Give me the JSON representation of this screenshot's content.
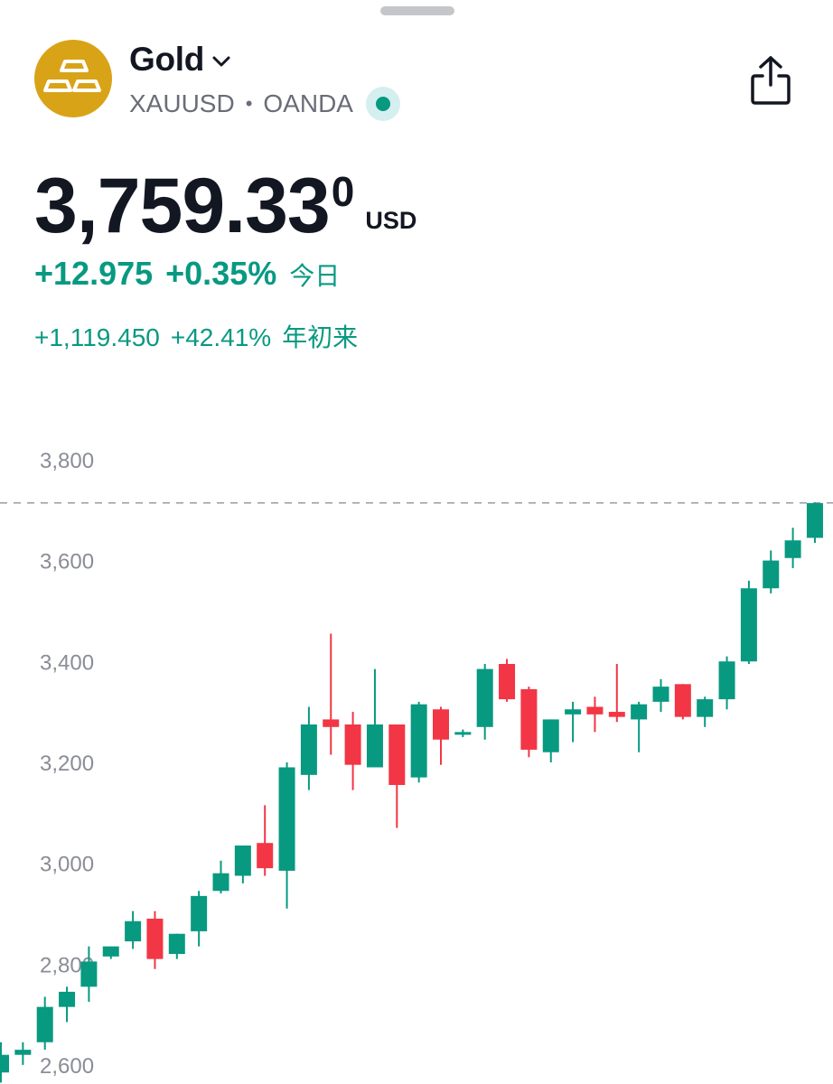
{
  "instrument": {
    "name": "Gold",
    "symbol": "XAUUSD",
    "exchange": "OANDA",
    "separator": "•",
    "logo_icon": "gold-bars-icon",
    "logo_color": "#d9a317",
    "live_status_color": "#089981"
  },
  "quote": {
    "price_main": "3,759.33",
    "price_sup": "0",
    "currency": "USD",
    "change_abs": "+12.975",
    "change_pct": "+0.35%",
    "change_label": "今日",
    "ytd_abs": "+1,119.450",
    "ytd_pct": "+42.41%",
    "ytd_label": "年初来"
  },
  "actions": {
    "share_icon": "share-icon",
    "dropdown_icon": "chevron-down-icon"
  },
  "colors": {
    "up": "#089981",
    "down": "#f23645",
    "text": "#131722",
    "muted": "#8a8d96"
  },
  "chart_data": {
    "type": "candlestick",
    "y_ticks": [
      "3,800",
      "3,600",
      "3,400",
      "3,200",
      "3,000",
      "2,800",
      "2,600"
    ],
    "y_tick_values": [
      3800,
      3600,
      3400,
      3200,
      3000,
      2800,
      2600
    ],
    "last_price_line": 3759.33,
    "grid": false,
    "candles": [
      {
        "o": 2630,
        "h": 2690,
        "l": 2610,
        "c": 2665
      },
      {
        "o": 2665,
        "h": 2690,
        "l": 2645,
        "c": 2675
      },
      {
        "o": 2690,
        "h": 2780,
        "l": 2675,
        "c": 2760
      },
      {
        "o": 2760,
        "h": 2800,
        "l": 2730,
        "c": 2790
      },
      {
        "o": 2800,
        "h": 2880,
        "l": 2770,
        "c": 2850
      },
      {
        "o": 2860,
        "h": 2875,
        "l": 2855,
        "c": 2880
      },
      {
        "o": 2890,
        "h": 2950,
        "l": 2875,
        "c": 2930
      },
      {
        "o": 2935,
        "h": 2950,
        "l": 2835,
        "c": 2855
      },
      {
        "o": 2865,
        "h": 2905,
        "l": 2855,
        "c": 2905
      },
      {
        "o": 2910,
        "h": 2990,
        "l": 2880,
        "c": 2980
      },
      {
        "o": 2990,
        "h": 3050,
        "l": 2985,
        "c": 3025
      },
      {
        "o": 3020,
        "h": 3080,
        "l": 3005,
        "c": 3080
      },
      {
        "o": 3085,
        "h": 3160,
        "l": 3020,
        "c": 3035
      },
      {
        "o": 3030,
        "h": 3245,
        "l": 2955,
        "c": 3235
      },
      {
        "o": 3220,
        "h": 3355,
        "l": 3190,
        "c": 3320
      },
      {
        "o": 3330,
        "h": 3500,
        "l": 3260,
        "c": 3315
      },
      {
        "o": 3320,
        "h": 3345,
        "l": 3190,
        "c": 3240
      },
      {
        "o": 3235,
        "h": 3430,
        "l": 3235,
        "c": 3320
      },
      {
        "o": 3320,
        "h": 3320,
        "l": 3115,
        "c": 3200
      },
      {
        "o": 3215,
        "h": 3365,
        "l": 3205,
        "c": 3360
      },
      {
        "o": 3350,
        "h": 3355,
        "l": 3240,
        "c": 3290
      },
      {
        "o": 3300,
        "h": 3310,
        "l": 3295,
        "c": 3305
      },
      {
        "o": 3315,
        "h": 3440,
        "l": 3290,
        "c": 3430
      },
      {
        "o": 3440,
        "h": 3450,
        "l": 3365,
        "c": 3370
      },
      {
        "o": 3390,
        "h": 3395,
        "l": 3255,
        "c": 3270
      },
      {
        "o": 3265,
        "h": 3330,
        "l": 3245,
        "c": 3330
      },
      {
        "o": 3340,
        "h": 3365,
        "l": 3285,
        "c": 3350
      },
      {
        "o": 3355,
        "h": 3375,
        "l": 3305,
        "c": 3340
      },
      {
        "o": 3345,
        "h": 3440,
        "l": 3325,
        "c": 3335
      },
      {
        "o": 3330,
        "h": 3365,
        "l": 3265,
        "c": 3360
      },
      {
        "o": 3365,
        "h": 3410,
        "l": 3345,
        "c": 3395
      },
      {
        "o": 3400,
        "h": 3400,
        "l": 3330,
        "c": 3335
      },
      {
        "o": 3335,
        "h": 3375,
        "l": 3315,
        "c": 3370
      },
      {
        "o": 3370,
        "h": 3455,
        "l": 3350,
        "c": 3445
      },
      {
        "o": 3445,
        "h": 3605,
        "l": 3440,
        "c": 3590
      },
      {
        "o": 3590,
        "h": 3665,
        "l": 3580,
        "c": 3645
      },
      {
        "o": 3650,
        "h": 3710,
        "l": 3630,
        "c": 3685
      },
      {
        "o": 3690,
        "h": 3760,
        "l": 3680,
        "c": 3759
      }
    ]
  }
}
